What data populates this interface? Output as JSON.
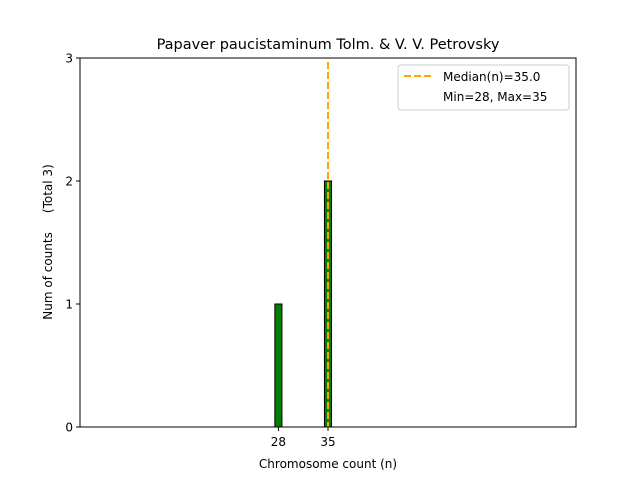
{
  "chart_data": {
    "type": "bar",
    "title": "Papaver paucistaminum Tolm. & V. V. Petrovsky",
    "xlabel": "Chromosome count (n)",
    "ylabel": "Num of counts     (Total 3)",
    "xlim": [
      0,
      70
    ],
    "ylim": [
      0,
      3
    ],
    "xticks": [
      28,
      35
    ],
    "yticks": [
      0,
      1,
      2,
      3
    ],
    "bars": [
      {
        "x": 28,
        "value": 1
      },
      {
        "x": 35,
        "value": 2
      }
    ],
    "bar_color": "#008000",
    "baseline_extent": [
      0,
      38
    ],
    "median": 35.0,
    "median_color": "#FFA500",
    "legend": {
      "position": "top-right",
      "entries": [
        "Median(n)=35.0",
        "Min=28, Max=35"
      ]
    },
    "grid": false
  }
}
